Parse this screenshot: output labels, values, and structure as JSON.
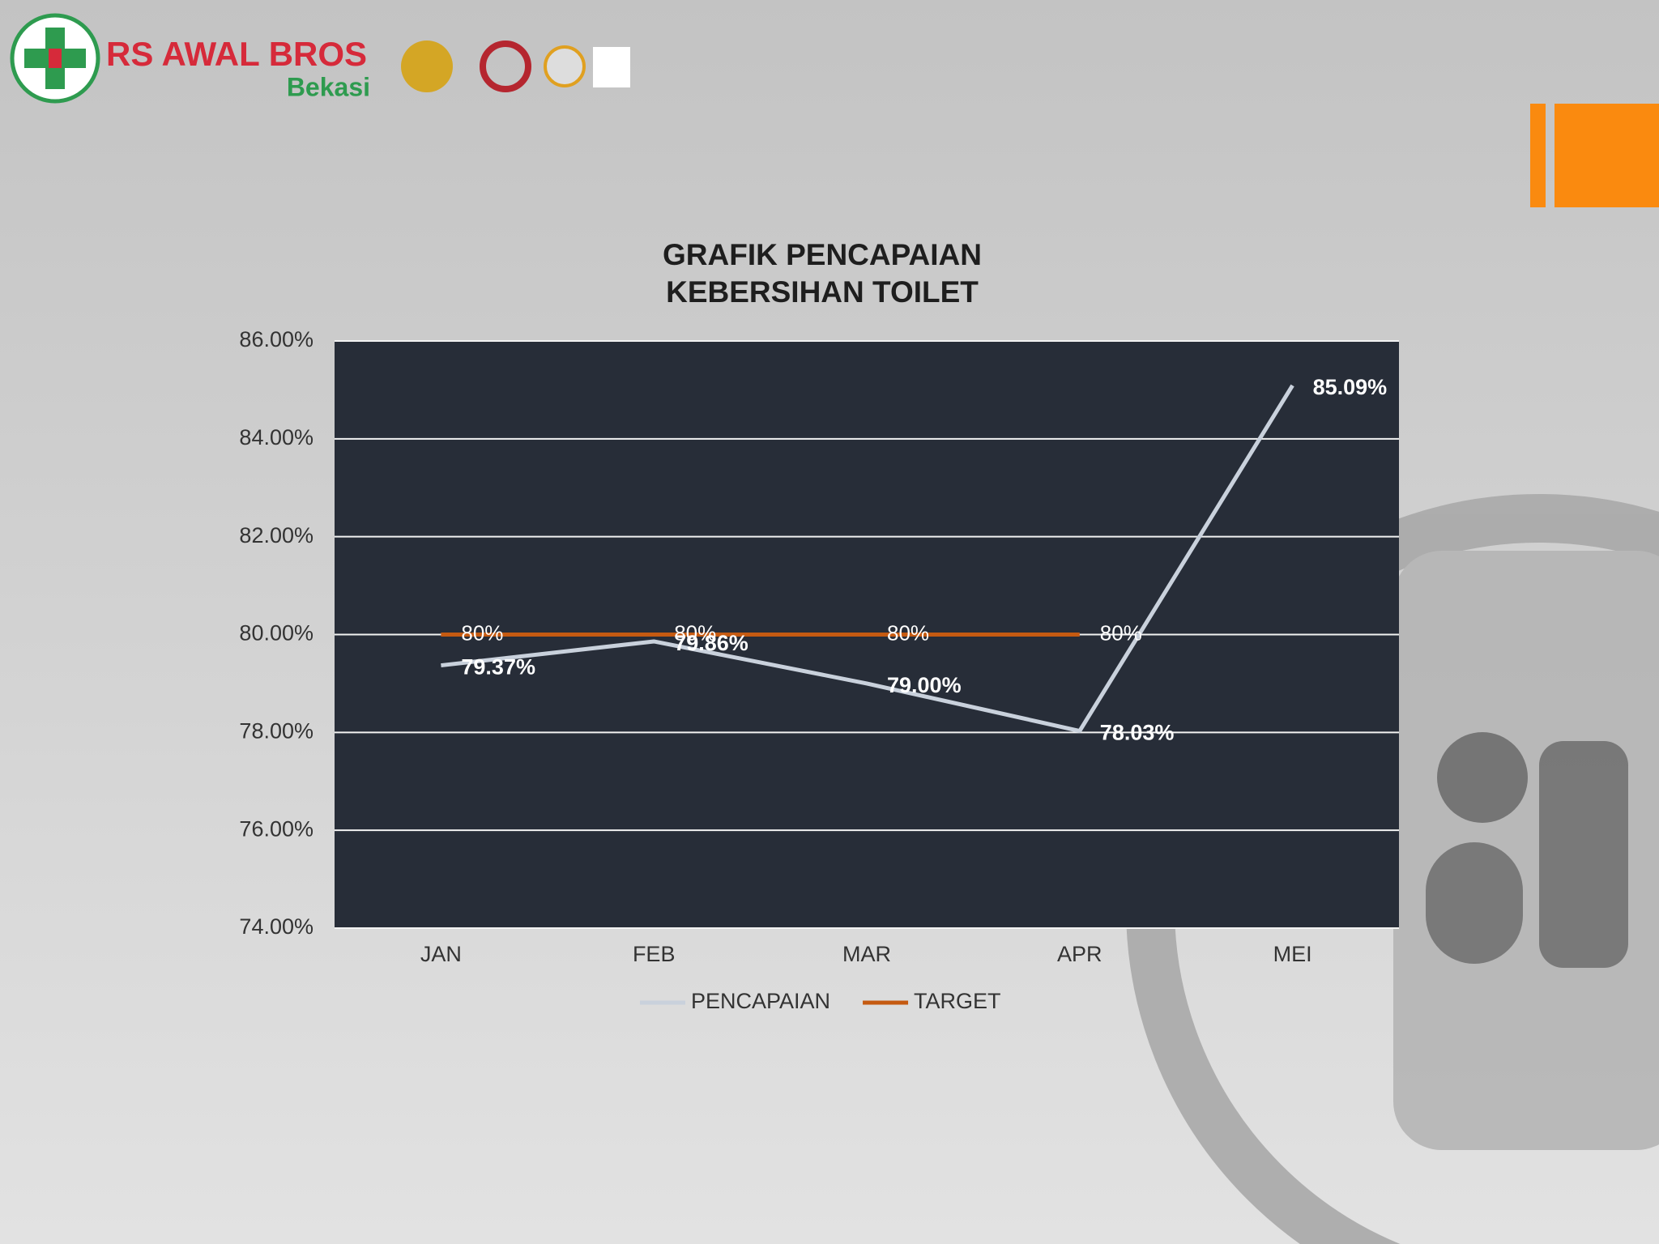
{
  "header": {
    "brand": "RS AWAL BROS",
    "location": "Bekasi"
  },
  "chart_data": {
    "type": "line",
    "title": [
      "GRAFIK PENCAPAIAN",
      "KEBERSIHAN TOILET"
    ],
    "categories": [
      "JAN",
      "FEB",
      "MAR",
      "APR",
      "MEI"
    ],
    "series": [
      {
        "name": "PENCAPAIAN",
        "color": "#c9d1dc",
        "values": [
          79.37,
          79.86,
          79.0,
          78.03,
          85.09
        ],
        "value_labels": [
          "79.37%",
          "79.86%",
          "79.00%",
          "78.03%",
          "85.09%"
        ]
      },
      {
        "name": "TARGET",
        "color": "#c55a11",
        "values": [
          80,
          80,
          80,
          80,
          null
        ],
        "value_labels": [
          "80%",
          "80%",
          "80%",
          "80%",
          null
        ]
      }
    ],
    "ylim": [
      74,
      86
    ],
    "yticks": [
      {
        "value": 74,
        "label": "74.00%"
      },
      {
        "value": 76,
        "label": "76.00%"
      },
      {
        "value": 78,
        "label": "78.00%"
      },
      {
        "value": 80,
        "label": "80.00%"
      },
      {
        "value": 82,
        "label": "82.00%"
      },
      {
        "value": 84,
        "label": "84.00%"
      },
      {
        "value": 86,
        "label": "86.00%"
      }
    ],
    "grid": true,
    "legend": "bottom",
    "plot_background": "#272d38"
  }
}
